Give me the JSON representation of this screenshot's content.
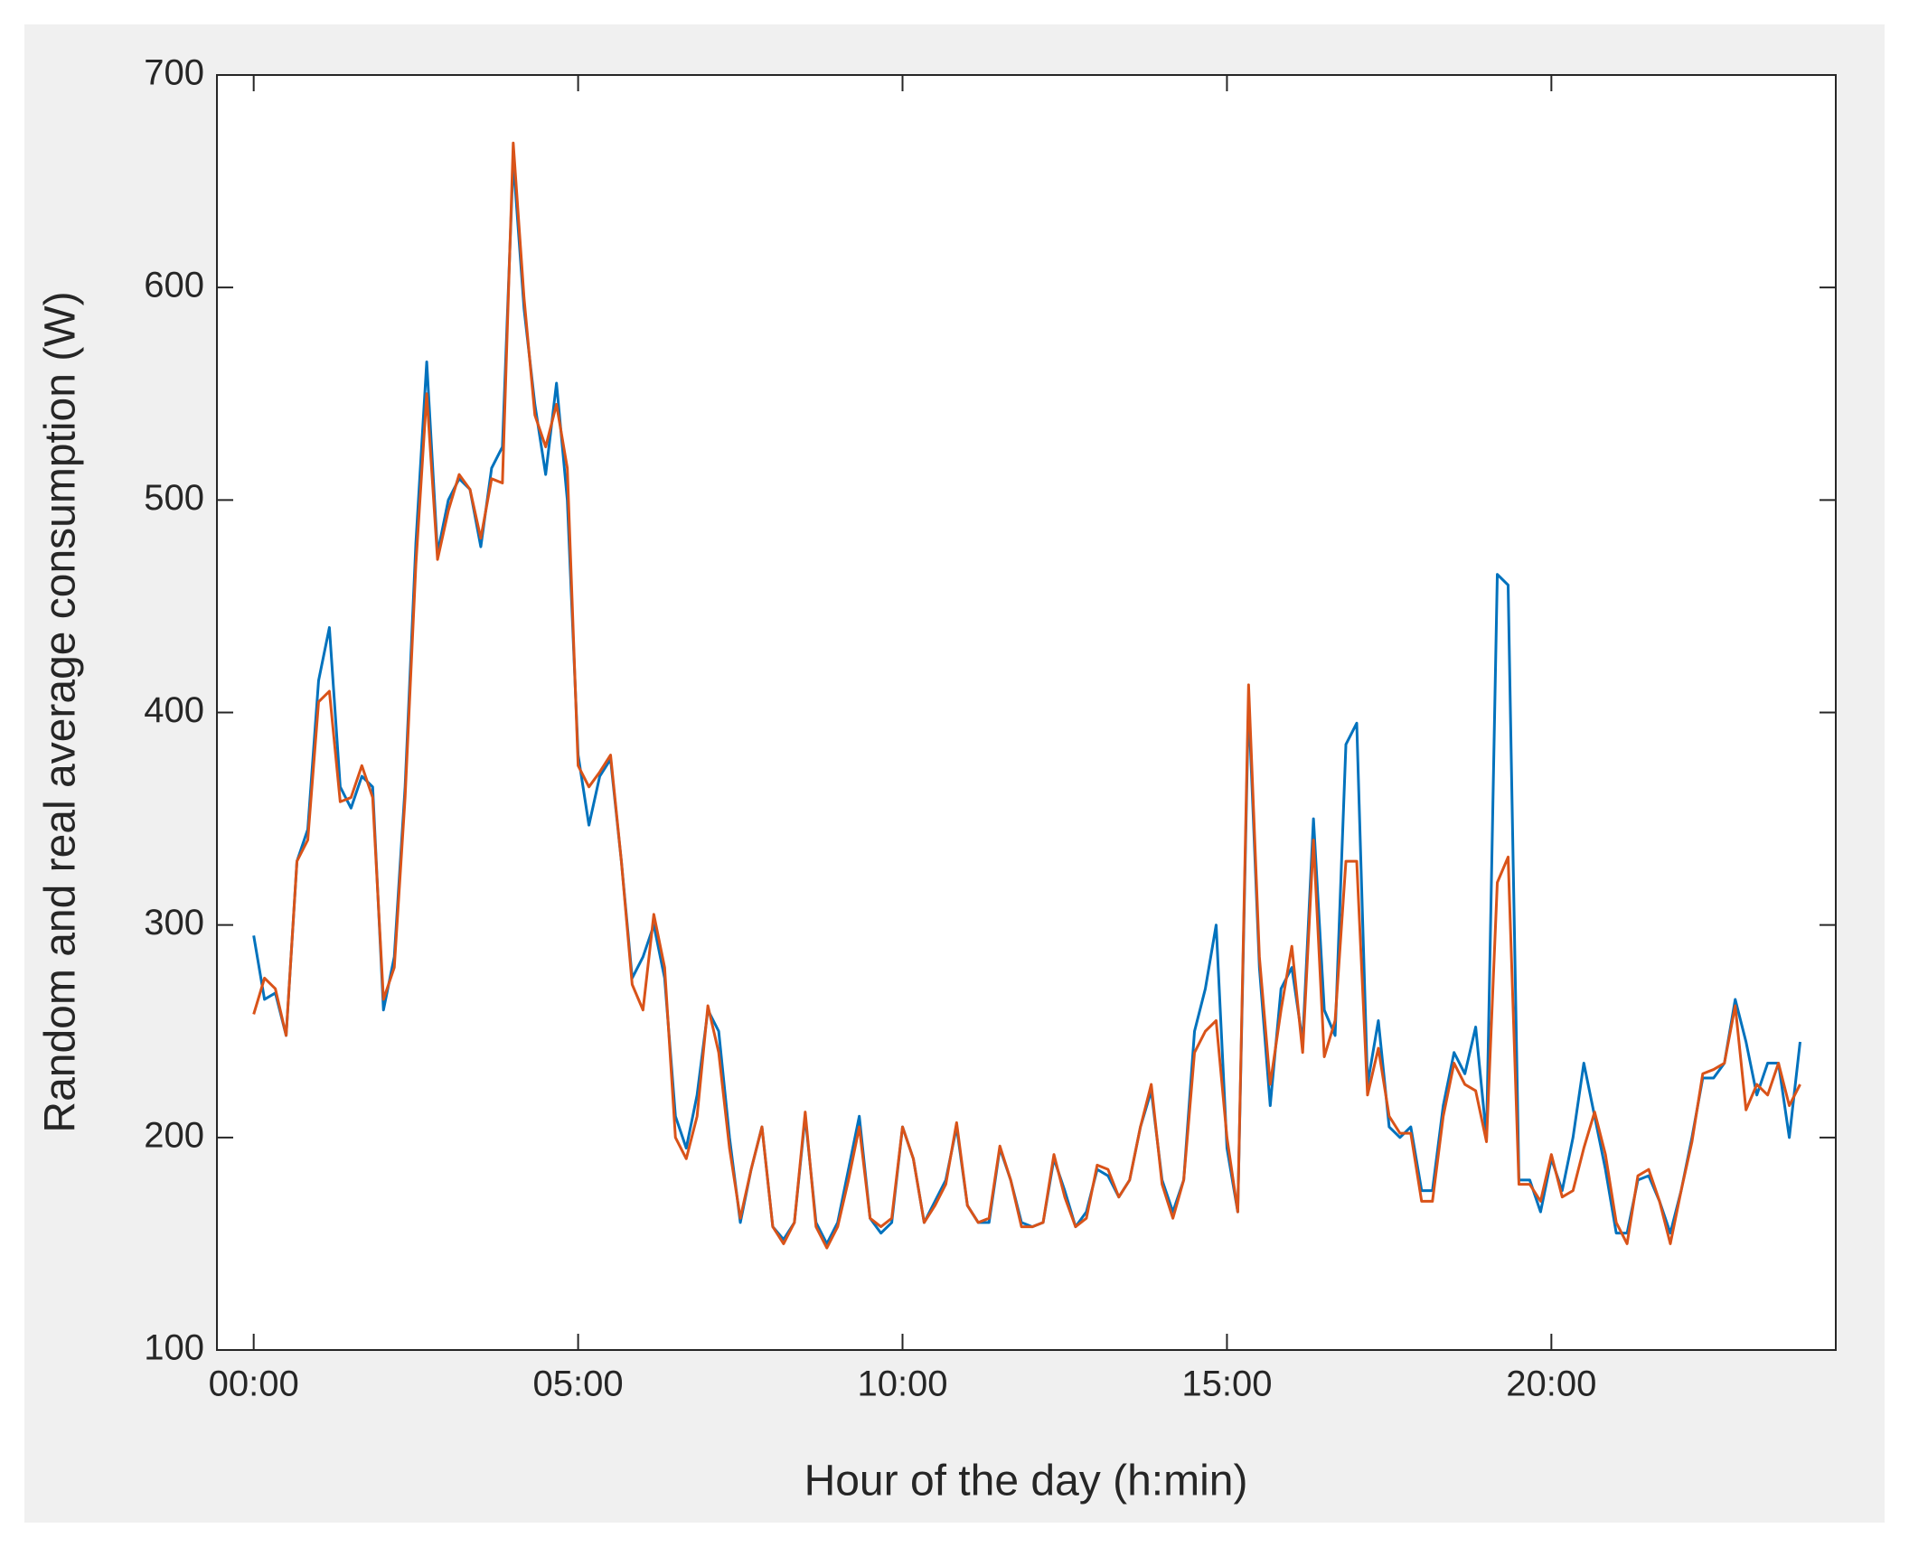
{
  "chart_data": {
    "type": "line",
    "xlabel": "Hour of the day (h:min)",
    "ylabel": "Random and real average consumption (W)",
    "x": [
      0,
      10,
      20,
      30,
      40,
      50,
      60,
      70,
      80,
      90,
      100,
      110,
      120,
      130,
      140,
      150,
      160,
      170,
      180,
      190,
      200,
      210,
      220,
      230,
      240,
      250,
      260,
      270,
      280,
      290,
      300,
      310,
      320,
      330,
      340,
      350,
      360,
      370,
      380,
      390,
      400,
      410,
      420,
      430,
      440,
      450,
      460,
      470,
      480,
      490,
      500,
      510,
      520,
      530,
      540,
      550,
      560,
      570,
      580,
      590,
      600,
      610,
      620,
      630,
      640,
      650,
      660,
      670,
      680,
      690,
      700,
      710,
      720,
      730,
      740,
      750,
      760,
      770,
      780,
      790,
      800,
      810,
      820,
      830,
      840,
      850,
      860,
      870,
      880,
      890,
      900,
      910,
      920,
      930,
      940,
      950,
      960,
      970,
      980,
      990,
      1000,
      1010,
      1020,
      1030,
      1040,
      1050,
      1060,
      1070,
      1080,
      1090,
      1100,
      1110,
      1120,
      1130,
      1140,
      1150,
      1160,
      1170,
      1180,
      1190,
      1200,
      1210,
      1220,
      1230,
      1240,
      1250,
      1260,
      1270,
      1280,
      1290,
      1300,
      1310,
      1320,
      1330,
      1340,
      1350,
      1360,
      1370,
      1380,
      1390,
      1400,
      1410,
      1420,
      1430
    ],
    "series": [
      {
        "color": "#0072bd",
        "values": [
          295,
          265,
          268,
          248,
          330,
          345,
          415,
          440,
          365,
          355,
          370,
          365,
          260,
          285,
          365,
          480,
          565,
          475,
          500,
          510,
          505,
          478,
          515,
          525,
          660,
          590,
          545,
          512,
          555,
          500,
          380,
          347,
          370,
          378,
          330,
          275,
          285,
          300,
          275,
          210,
          195,
          220,
          260,
          250,
          200,
          160,
          185,
          205,
          158,
          152,
          160,
          210,
          160,
          150,
          160,
          185,
          210,
          162,
          155,
          160,
          205,
          190,
          160,
          170,
          180,
          205,
          168,
          160,
          160,
          195,
          180,
          160,
          158,
          160,
          190,
          175,
          158,
          165,
          185,
          182,
          172,
          180,
          205,
          222,
          180,
          165,
          180,
          250,
          270,
          300,
          195,
          165,
          405,
          280,
          215,
          270,
          280,
          245,
          350,
          260,
          248,
          385,
          395,
          225,
          255,
          205,
          200,
          205,
          175,
          175,
          215,
          240,
          230,
          252,
          200,
          465,
          460,
          180,
          180,
          165,
          190,
          175,
          200,
          235,
          210,
          185,
          155,
          155,
          180,
          182,
          170,
          155,
          175,
          200,
          228,
          228,
          235,
          265,
          245,
          220,
          235,
          235,
          200,
          245
        ]
      },
      {
        "color": "#d95319",
        "values": [
          258,
          275,
          270,
          248,
          330,
          340,
          405,
          410,
          358,
          360,
          375,
          360,
          265,
          280,
          360,
          470,
          550,
          472,
          495,
          512,
          505,
          482,
          510,
          508,
          668,
          595,
          540,
          525,
          545,
          515,
          375,
          365,
          372,
          380,
          330,
          272,
          260,
          305,
          280,
          200,
          190,
          210,
          262,
          240,
          195,
          162,
          185,
          205,
          158,
          150,
          160,
          212,
          158,
          148,
          158,
          180,
          205,
          162,
          158,
          162,
          205,
          190,
          160,
          168,
          178,
          207,
          168,
          160,
          162,
          196,
          180,
          158,
          158,
          160,
          192,
          172,
          158,
          162,
          187,
          185,
          172,
          180,
          205,
          225,
          178,
          162,
          180,
          240,
          250,
          255,
          200,
          165,
          413,
          285,
          225,
          260,
          290,
          240,
          340,
          238,
          255,
          330,
          330,
          220,
          242,
          210,
          202,
          202,
          170,
          170,
          210,
          235,
          225,
          222,
          198,
          320,
          332,
          178,
          178,
          170,
          192,
          172,
          175,
          195,
          212,
          192,
          160,
          150,
          182,
          185,
          170,
          150,
          175,
          198,
          230,
          232,
          235,
          262,
          213,
          225,
          220,
          235,
          215,
          225
        ]
      }
    ],
    "xlim": [
      -34,
      1463
    ],
    "xticks": [
      {
        "value": 0,
        "label": "00:00"
      },
      {
        "value": 300,
        "label": "05:00"
      },
      {
        "value": 600,
        "label": "10:00"
      },
      {
        "value": 900,
        "label": "15:00"
      },
      {
        "value": 1200,
        "label": "20:00"
      }
    ],
    "ylim": [
      100,
      700
    ],
    "yticks": [
      100,
      200,
      300,
      400,
      500,
      600,
      700
    ],
    "grid": false
  }
}
